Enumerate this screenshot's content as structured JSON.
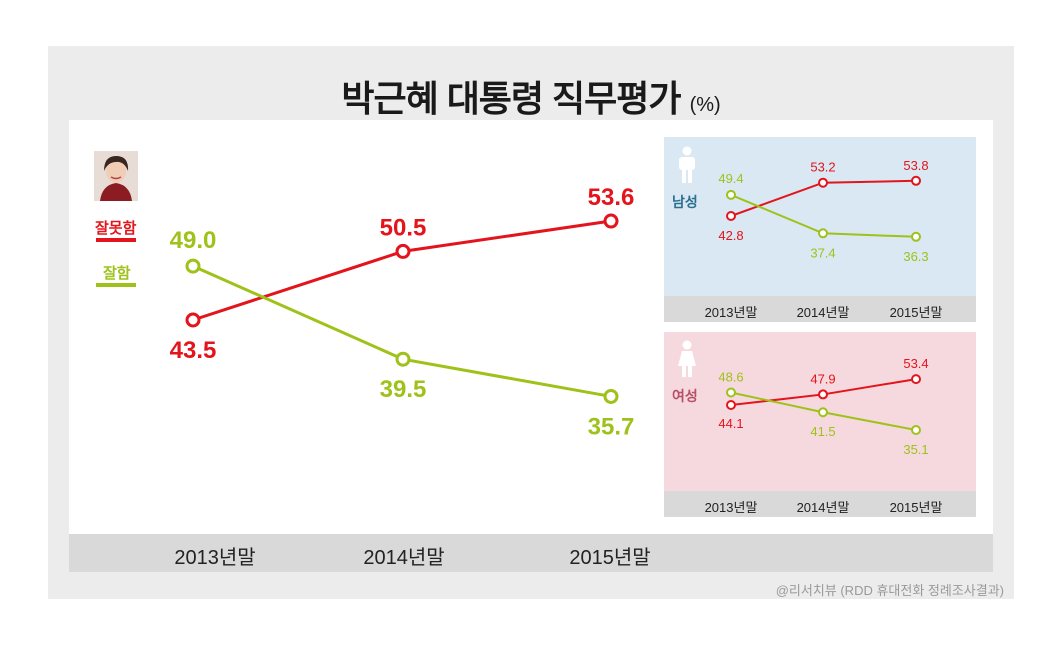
{
  "title": "박근혜 대통령 직무평가",
  "title_unit": "(%)",
  "credit": "@리서치뷰 (RDD 휴대전화 정례조사결과)",
  "legend": [
    {
      "label": "잘못함",
      "color": "#e3141b"
    },
    {
      "label": "잘함",
      "color": "#9ec21a"
    }
  ],
  "chart_data": [
    {
      "type": "line",
      "categories": [
        "2013년말",
        "2014년말",
        "2015년말"
      ],
      "series": [
        {
          "name": "잘못함",
          "values": [
            43.5,
            50.5,
            53.6
          ],
          "color": "#e3141b"
        },
        {
          "name": "잘함",
          "values": [
            49.0,
            39.5,
            35.7
          ],
          "color": "#9ec21a"
        }
      ],
      "value_labels": {
        "잘못함": [
          "43.5",
          "50.5",
          "53.6"
        ],
        "잘함": [
          "49.0",
          "39.5",
          "35.7"
        ]
      },
      "ylim": [
        30,
        60
      ],
      "grid": false
    },
    {
      "type": "line",
      "panel_label": "남성",
      "categories": [
        "2013년말",
        "2014년말",
        "2015년말"
      ],
      "series": [
        {
          "name": "잘못함",
          "values": [
            42.8,
            53.2,
            53.8
          ],
          "color": "#e3141b"
        },
        {
          "name": "잘함",
          "values": [
            49.4,
            37.4,
            36.3
          ],
          "color": "#9ec21a"
        }
      ],
      "value_labels": {
        "잘못함": [
          "42.8",
          "53.2",
          "53.8"
        ],
        "잘함": [
          "49.4",
          "37.4",
          "36.3"
        ]
      },
      "ylim": [
        30,
        60
      ],
      "background": "#d9e8f2"
    },
    {
      "type": "line",
      "panel_label": "여성",
      "categories": [
        "2013년말",
        "2014년말",
        "2015년말"
      ],
      "series": [
        {
          "name": "잘못함",
          "values": [
            44.1,
            47.9,
            53.4
          ],
          "color": "#e3141b"
        },
        {
          "name": "잘함",
          "values": [
            48.6,
            41.5,
            35.1
          ],
          "color": "#9ec21a"
        }
      ],
      "value_labels": {
        "잘못함": [
          "44.1",
          "47.9",
          "53.4"
        ],
        "잘함": [
          "48.6",
          "41.5",
          "35.1"
        ]
      },
      "ylim": [
        30,
        60
      ],
      "background": "#f6d9de"
    }
  ]
}
